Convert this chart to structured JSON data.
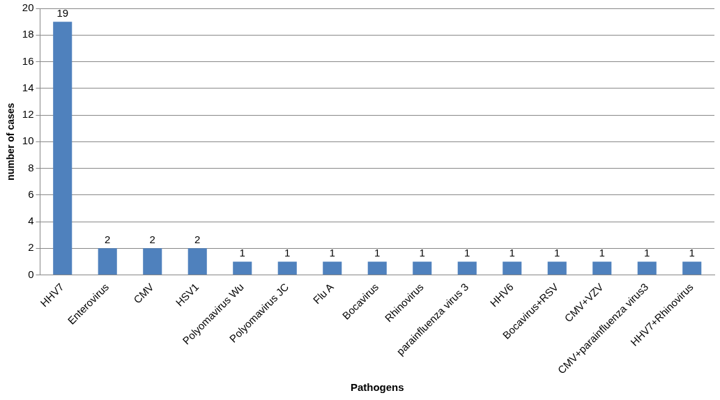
{
  "chart_data": {
    "type": "bar",
    "xlabel": "Pathogens",
    "ylabel": "number of cases",
    "categories": [
      "HHV7",
      "Enterovirus",
      "CMV",
      "HSV1",
      "Polyomavirus Wu",
      "Polyomavirus JC",
      "Flu A",
      "Bocavirus",
      "Rhinovirus",
      "parainfluenza virus 3",
      "HHV6",
      "Bocavirus+RSV",
      "CMV+VZV",
      "CMV+parainfluenza virus3",
      "HHV7+Rhinovirus"
    ],
    "values": [
      19,
      2,
      2,
      2,
      1,
      1,
      1,
      1,
      1,
      1,
      1,
      1,
      1,
      1,
      1
    ],
    "color": "#4f81bd",
    "ylim": [
      0,
      20
    ],
    "yticks": [
      0,
      2,
      4,
      6,
      8,
      10,
      12,
      14,
      16,
      18,
      20
    ],
    "grid": "y",
    "data_labels": true
  }
}
